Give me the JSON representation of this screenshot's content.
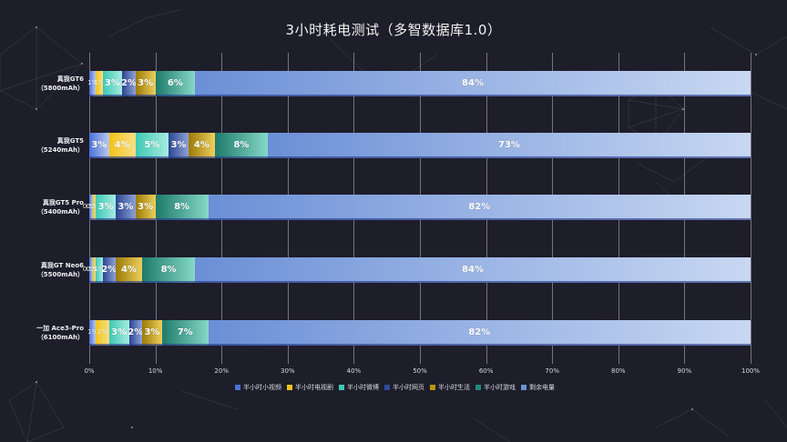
{
  "title": "3小时耗电测试（多智数据库1.0）",
  "legend": [
    {
      "label": "半小时小视频",
      "color": "#4a72d6"
    },
    {
      "label": "半小时电视剧",
      "color": "#f2c21a"
    },
    {
      "label": "半小时微博",
      "color": "#3ec8b4"
    },
    {
      "label": "半小时网页",
      "color": "#2f4a9a"
    },
    {
      "label": "半小时生活",
      "color": "#b8960c"
    },
    {
      "label": "半小时游戏",
      "color": "#1f8a78"
    },
    {
      "label": "剩余电量",
      "color": "#6b8fd6"
    }
  ],
  "xticks": [
    "0%",
    "10%",
    "20%",
    "30%",
    "40%",
    "50%",
    "60%",
    "70%",
    "80%",
    "90%",
    "100%"
  ],
  "rows": [
    {
      "name": "真我GT6",
      "battery": "（5800mAh）",
      "labels": [
        "1%",
        "1%",
        "3%",
        "2%",
        "3%",
        "6%",
        "84%"
      ]
    },
    {
      "name": "真我GT5",
      "battery": "（5240mAh）",
      "labels": [
        "3%",
        "4%",
        "5%",
        "3%",
        "4%",
        "8%",
        "73%"
      ]
    },
    {
      "name": "真我GT5 Pro",
      "battery": "（5400mAh）",
      "labels": [
        "0.5%",
        "0.5%",
        "3%",
        "3%",
        "3%",
        "8%",
        "82%"
      ]
    },
    {
      "name": "真我GT Neo6",
      "battery": "（5500mAh）",
      "labels": [
        "0.5%",
        "0.5%",
        "1%",
        "2%",
        "4%",
        "8%",
        "84%"
      ]
    },
    {
      "name": "一加 Ace3-Pro",
      "battery": "（6100mAh）",
      "labels": [
        "1%",
        "2%",
        "3%",
        "2%",
        "3%",
        "7%",
        "82%"
      ]
    }
  ],
  "chart_data": {
    "type": "bar",
    "orientation": "horizontal",
    "stacked": true,
    "title": "3小时耗电测试（多智数据库1.0）",
    "xlabel": "",
    "ylabel": "",
    "xlim": [
      0,
      100
    ],
    "x_tick_labels": [
      "0%",
      "10%",
      "20%",
      "30%",
      "40%",
      "50%",
      "60%",
      "70%",
      "80%",
      "90%",
      "100%"
    ],
    "grid": "vertical",
    "legend_position": "bottom",
    "categories": [
      "真我GT6（5800mAh）",
      "真我GT5（5240mAh）",
      "真我GT5 Pro（5400mAh）",
      "真我GT Neo6（5500mAh）",
      "一加 Ace3-Pro（6100mAh）"
    ],
    "series": [
      {
        "name": "半小时小视频",
        "values": [
          1,
          3,
          0.5,
          0.5,
          1
        ]
      },
      {
        "name": "半小时电视剧",
        "values": [
          1,
          4,
          0.5,
          0.5,
          2
        ]
      },
      {
        "name": "半小时微博",
        "values": [
          3,
          5,
          3,
          1,
          3
        ]
      },
      {
        "name": "半小时网页",
        "values": [
          2,
          3,
          3,
          2,
          2
        ]
      },
      {
        "name": "半小时生活",
        "values": [
          3,
          4,
          3,
          4,
          3
        ]
      },
      {
        "name": "半小时游戏",
        "values": [
          6,
          8,
          8,
          8,
          7
        ]
      },
      {
        "name": "剩余电量",
        "values": [
          84,
          73,
          82,
          84,
          82
        ]
      }
    ]
  }
}
